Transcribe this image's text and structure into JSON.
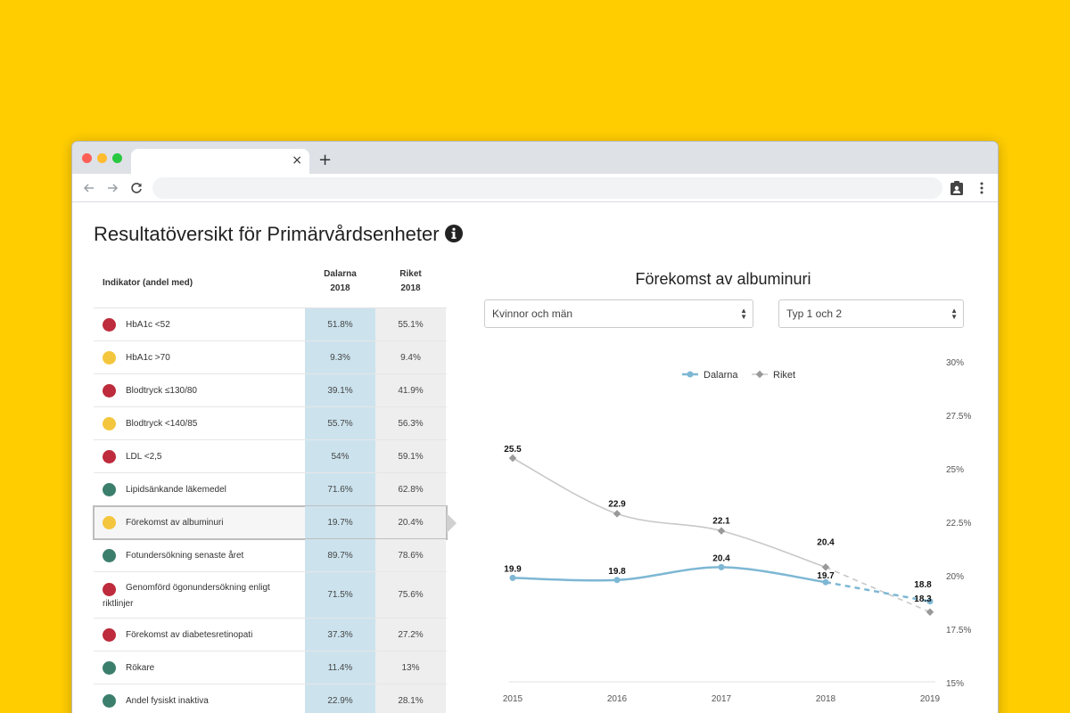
{
  "browser": {
    "tab_close": "×",
    "new_tab": "+"
  },
  "page_title": "Resultatöversikt för Primärvårdsenheter",
  "table": {
    "col_indicator": "Indikator (andel med)",
    "col_dalarna": "Dalarna",
    "col_dalarna_year": "2018",
    "col_riket": "Riket",
    "col_riket_year": "2018",
    "rows": [
      {
        "label": "HbA1c <52",
        "status": "red",
        "dalarna": "51.8%",
        "riket": "55.1%"
      },
      {
        "label": "HbA1c >70",
        "status": "yellow",
        "dalarna": "9.3%",
        "riket": "9.4%"
      },
      {
        "label": "Blodtryck ≤130/80",
        "status": "red",
        "dalarna": "39.1%",
        "riket": "41.9%"
      },
      {
        "label": "Blodtryck <140/85",
        "status": "yellow",
        "dalarna": "55.7%",
        "riket": "56.3%"
      },
      {
        "label": "LDL <2,5",
        "status": "red",
        "dalarna": "54%",
        "riket": "59.1%"
      },
      {
        "label": "Lipidsänkande läkemedel",
        "status": "green",
        "dalarna": "71.6%",
        "riket": "62.8%"
      },
      {
        "label": "Förekomst av albuminuri",
        "status": "yellow",
        "dalarna": "19.7%",
        "riket": "20.4%",
        "selected": true
      },
      {
        "label": "Fotundersökning senaste året",
        "status": "green",
        "dalarna": "89.7%",
        "riket": "78.6%"
      },
      {
        "label": "Genomförd ögonundersökning enligt",
        "label2": "riktlinjer",
        "status": "red",
        "dalarna": "71.5%",
        "riket": "75.6%"
      },
      {
        "label": "Förekomst av diabetesretinopati",
        "status": "red",
        "dalarna": "37.3%",
        "riket": "27.2%"
      },
      {
        "label": "Rökare",
        "status": "green",
        "dalarna": "11.4%",
        "riket": "13%"
      },
      {
        "label": "Andel fysiskt inaktiva",
        "status": "green",
        "dalarna": "22.9%",
        "riket": "28.1%"
      }
    ]
  },
  "status_colors": {
    "red": "#BD2B3C",
    "yellow": "#F4C63D",
    "green": "#3C7E6C"
  },
  "filters": {
    "sex": "Kvinnor och män",
    "type": "Typ 1 och 2",
    "arrow_up": "▲",
    "arrow_down": "▼"
  },
  "chart_data": {
    "type": "line",
    "title": "Förekomst av albuminuri",
    "x": [
      "2015",
      "2016",
      "2017",
      "2018",
      "2019"
    ],
    "y_ticks": [
      "15%",
      "17.5%",
      "20%",
      "22.5%",
      "25%",
      "27.5%",
      "30%"
    ],
    "ylim": [
      15,
      30
    ],
    "y_axis_side": "right",
    "legend_position": "top-center",
    "grid": false,
    "series": [
      {
        "name": "Dalarna",
        "color": "#7DB7D4",
        "values": [
          19.9,
          19.8,
          20.4,
          19.7,
          18.8
        ],
        "labels": [
          "19.9",
          "19.8",
          "20.4",
          "19.7",
          "18.8"
        ],
        "projected_last": true
      },
      {
        "name": "Riket",
        "color": "#C8C8C8",
        "values": [
          25.5,
          22.9,
          22.1,
          20.4,
          18.3
        ],
        "labels": [
          "25.5",
          "22.9",
          "22.1",
          "20.4",
          "18.3"
        ],
        "projected_last": true
      }
    ]
  }
}
